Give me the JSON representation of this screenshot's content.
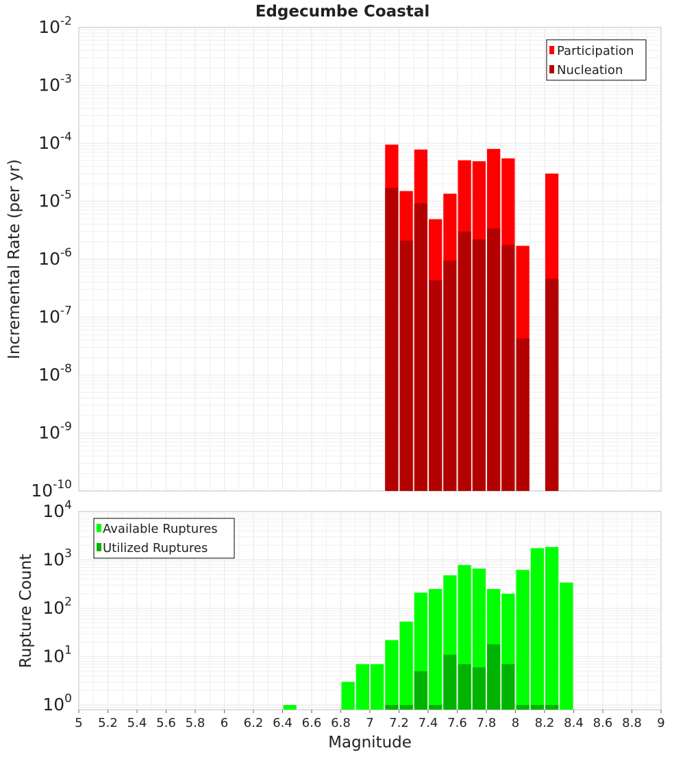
{
  "chart_data": [
    {
      "type": "bar",
      "title": "Edgecumbe Coastal",
      "xlabel": "",
      "ylabel": "Incremental Rate (per yr)",
      "yscale": "log",
      "ylim": [
        1e-10,
        0.01
      ],
      "xlim": [
        5,
        9
      ],
      "bin_width": 0.1,
      "y_ticks": [
        {
          "base": "10",
          "exp": "-10"
        },
        {
          "base": "10",
          "exp": "-9"
        },
        {
          "base": "10",
          "exp": "-8"
        },
        {
          "base": "10",
          "exp": "-7"
        },
        {
          "base": "10",
          "exp": "-6"
        },
        {
          "base": "10",
          "exp": "-5"
        },
        {
          "base": "10",
          "exp": "-4"
        },
        {
          "base": "10",
          "exp": "-3"
        },
        {
          "base": "10",
          "exp": "-2"
        }
      ],
      "legend_position": "top-right",
      "series": [
        {
          "name": "Participation",
          "color": "#ff0000",
          "x": [
            7.15,
            7.25,
            7.35,
            7.45,
            7.55,
            7.65,
            7.75,
            7.85,
            7.95,
            8.05,
            8.25
          ],
          "values": [
            9.5e-05,
            1.5e-05,
            7.8e-05,
            4.9e-06,
            1.35e-05,
            5.1e-05,
            4.9e-05,
            8e-05,
            5.5e-05,
            1.7e-06,
            3e-05
          ]
        },
        {
          "name": "Nucleation",
          "color": "#b30000",
          "x": [
            7.15,
            7.25,
            7.35,
            7.45,
            7.55,
            7.65,
            7.75,
            7.85,
            7.95,
            8.05,
            8.25
          ],
          "values": [
            1.7e-05,
            2.1e-06,
            9.2e-06,
            4.3e-07,
            9.5e-07,
            3e-06,
            2.2e-06,
            3.4e-06,
            1.75e-06,
            4.3e-08,
            4.6e-07
          ]
        }
      ]
    },
    {
      "type": "bar",
      "title": "",
      "xlabel": "Magnitude",
      "ylabel": "Rupture Count",
      "yscale": "log",
      "ylim": [
        0.8,
        10000
      ],
      "xlim": [
        5,
        9
      ],
      "bin_width": 0.1,
      "x_ticks": [
        "5",
        "5.2",
        "5.4",
        "5.6",
        "5.8",
        "6",
        "6.2",
        "6.4",
        "6.6",
        "6.8",
        "7",
        "7.2",
        "7.4",
        "7.6",
        "7.8",
        "8",
        "8.2",
        "8.4",
        "8.6",
        "8.8",
        "9"
      ],
      "y_ticks": [
        {
          "base": "10",
          "exp": "0"
        },
        {
          "base": "10",
          "exp": "1"
        },
        {
          "base": "10",
          "exp": "2"
        },
        {
          "base": "10",
          "exp": "3"
        },
        {
          "base": "10",
          "exp": "4"
        }
      ],
      "legend_position": "top-left",
      "series": [
        {
          "name": "Available Ruptures",
          "color": "#00ff00",
          "x": [
            6.45,
            6.85,
            6.95,
            7.05,
            7.15,
            7.25,
            7.35,
            7.45,
            7.55,
            7.65,
            7.75,
            7.85,
            7.95,
            8.05,
            8.15,
            8.25,
            8.35
          ],
          "values": [
            1,
            3,
            7,
            7,
            22,
            53,
            210,
            250,
            480,
            780,
            660,
            250,
            200,
            620,
            1750,
            1850,
            340
          ]
        },
        {
          "name": "Utilized Ruptures",
          "color": "#00b300",
          "x": [
            7.15,
            7.25,
            7.35,
            7.45,
            7.55,
            7.65,
            7.75,
            7.85,
            7.95,
            8.05,
            8.15,
            8.25
          ],
          "values": [
            1,
            1,
            5,
            1,
            11,
            7,
            6,
            18,
            7,
            1,
            1,
            1
          ]
        }
      ]
    }
  ]
}
